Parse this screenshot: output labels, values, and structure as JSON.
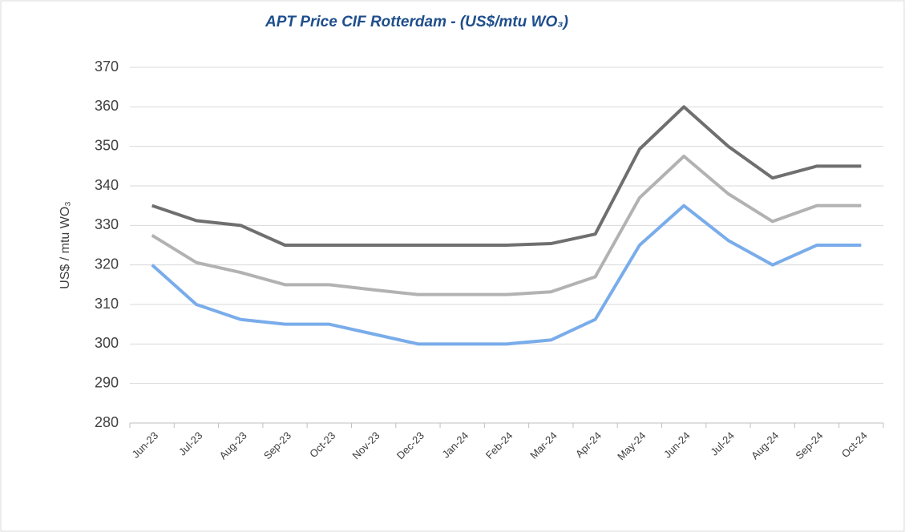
{
  "chart_data": {
    "type": "line",
    "title": "APT Price CIF Rotterdam - (US$/mtu WO₃)",
    "y_label": "US$ / mtu WO₃",
    "categories": [
      "Jun-23",
      "Jul-23",
      "Aug-23",
      "Sep-23",
      "Oct-23",
      "Nov-23",
      "Dec-23",
      "Jan-24",
      "Feb-24",
      "Mar-24",
      "Apr-24",
      "May-24",
      "Jun-24",
      "Jul-24",
      "Aug-24",
      "Sep-24",
      "Oct-24"
    ],
    "series": [
      {
        "color": "#6f6f6f",
        "values": [
          335,
          331.2,
          330,
          325,
          325,
          325,
          325,
          325,
          325,
          325.4,
          327.8,
          349.3,
          360,
          350,
          342,
          345,
          345
        ]
      },
      {
        "color": "#b2b2b2",
        "values": [
          327.5,
          320.6,
          318.1,
          315,
          315,
          313.7,
          312.5,
          312.5,
          312.5,
          313.2,
          317,
          337,
          347.5,
          338,
          331,
          335,
          335
        ]
      },
      {
        "color": "#79acea",
        "values": [
          320,
          310,
          306.2,
          305,
          305,
          302.5,
          300,
          300,
          300,
          301,
          306.2,
          325,
          335,
          326.2,
          320,
          325,
          325
        ]
      }
    ],
    "ylim": [
      280,
      370
    ],
    "yticks": [
      280,
      290,
      300,
      310,
      320,
      330,
      340,
      350,
      360,
      370
    ],
    "grid": true
  }
}
